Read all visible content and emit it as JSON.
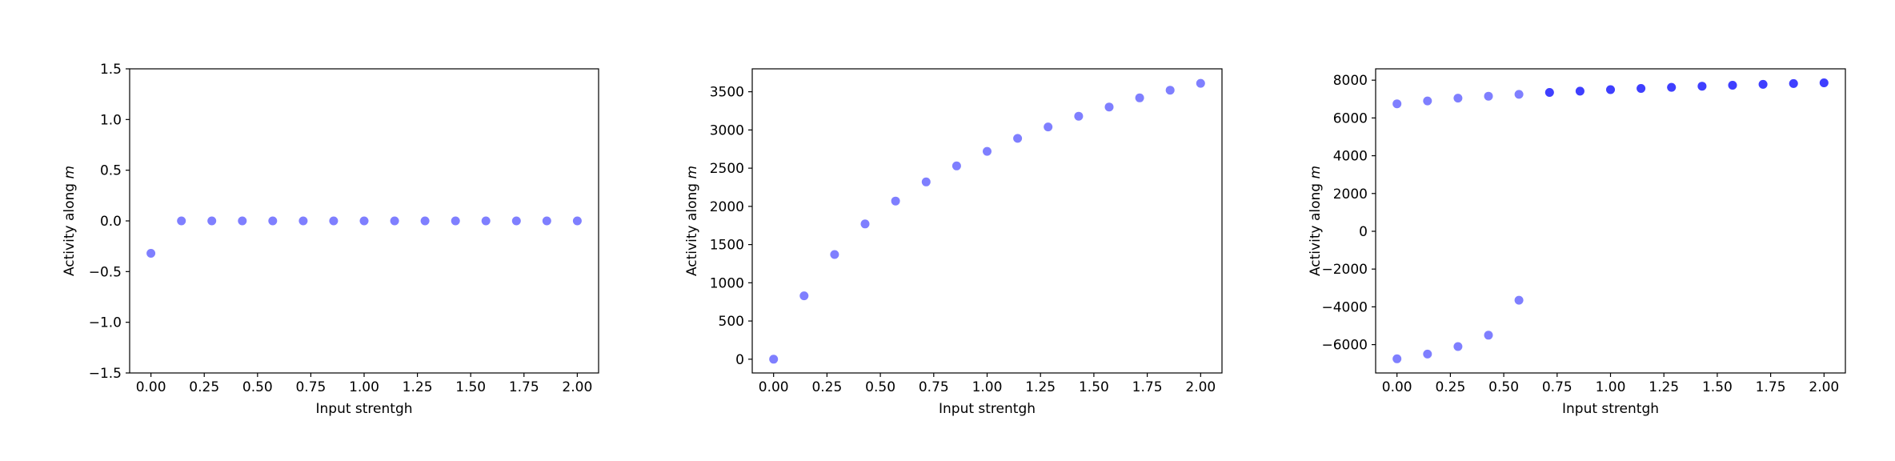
{
  "chart_data": [
    {
      "type": "scatter",
      "xlabel": "Input strentgh",
      "ylabel": "Activity along ",
      "ylabel_italic": "m",
      "xlim": [
        -0.1,
        2.1
      ],
      "ylim": [
        -1.5,
        1.5
      ],
      "xticks": [
        "0.00",
        "0.25",
        "0.50",
        "0.75",
        "1.00",
        "1.25",
        "1.50",
        "1.75",
        "2.00"
      ],
      "yticks": [
        "1.5",
        "1.0",
        "0.5",
        "0.0",
        "−0.5",
        "−1.0",
        "−1.5"
      ],
      "xtick_values": [
        0,
        0.25,
        0.5,
        0.75,
        1.0,
        1.25,
        1.5,
        1.75,
        2.0
      ],
      "ytick_values": [
        1.5,
        1.0,
        0.5,
        0.0,
        -0.5,
        -1.0,
        -1.5
      ],
      "color": "#0000ff",
      "series": [
        {
          "x": [
            0,
            0.1429,
            0.2857,
            0.4286,
            0.5714,
            0.7143,
            0.8571,
            1.0,
            1.1429,
            1.2857,
            1.4286,
            1.5714,
            1.7143,
            1.8571,
            2.0
          ],
          "y": [
            -0.32,
            0,
            0,
            0,
            0,
            0,
            0,
            0,
            0,
            0,
            0,
            0,
            0,
            0,
            0
          ]
        }
      ]
    },
    {
      "type": "scatter",
      "xlabel": "Input strentgh",
      "ylabel": "Activity along ",
      "ylabel_italic": "m",
      "xlim": [
        -0.1,
        2.1
      ],
      "ylim": [
        -180,
        3800
      ],
      "xticks": [
        "0.00",
        "0.25",
        "0.50",
        "0.75",
        "1.00",
        "1.25",
        "1.50",
        "1.75",
        "2.00"
      ],
      "yticks": [
        "3500",
        "3000",
        "2500",
        "2000",
        "1500",
        "1000",
        "500",
        "0"
      ],
      "xtick_values": [
        0,
        0.25,
        0.5,
        0.75,
        1.0,
        1.25,
        1.5,
        1.75,
        2.0
      ],
      "ytick_values": [
        3500,
        3000,
        2500,
        2000,
        1500,
        1000,
        500,
        0
      ],
      "color": "#0000ff",
      "series": [
        {
          "x": [
            0,
            0.1429,
            0.2857,
            0.4286,
            0.5714,
            0.7143,
            0.8571,
            1.0,
            1.1429,
            1.2857,
            1.4286,
            1.5714,
            1.7143,
            1.8571,
            2.0
          ],
          "y": [
            0,
            830,
            1370,
            1770,
            2070,
            2320,
            2530,
            2720,
            2890,
            3040,
            3180,
            3300,
            3420,
            3520,
            3610
          ]
        }
      ]
    },
    {
      "type": "scatter",
      "xlabel": "Input strentgh",
      "ylabel": "Activity along ",
      "ylabel_italic": "m",
      "xlim": [
        -0.1,
        2.1
      ],
      "ylim": [
        -7500,
        8600
      ],
      "xticks": [
        "0.00",
        "0.25",
        "0.50",
        "0.75",
        "1.00",
        "1.25",
        "1.50",
        "1.75",
        "2.00"
      ],
      "yticks": [
        "8000",
        "6000",
        "4000",
        "2000",
        "0",
        "−2000",
        "−4000",
        "−6000"
      ],
      "xtick_values": [
        0,
        0.25,
        0.5,
        0.75,
        1.0,
        1.25,
        1.5,
        1.75,
        2.0
      ],
      "ytick_values": [
        8000,
        6000,
        4000,
        2000,
        0,
        -2000,
        -4000,
        -6000
      ],
      "color": "#0000ff",
      "series": [
        {
          "x": [
            0,
            0.1429,
            0.2857,
            0.4286,
            0.5714,
            0.7143,
            0.8571,
            1.0,
            1.1429,
            1.2857,
            1.4286,
            1.5714,
            1.7143,
            1.8571,
            2.0
          ],
          "y": [
            6750,
            6900,
            7050,
            7150,
            7250,
            7350,
            7420,
            7500,
            7560,
            7620,
            7680,
            7730,
            7780,
            7820,
            7860
          ]
        },
        {
          "x": [
            0.7143,
            0.8571,
            1.0,
            1.1429,
            1.2857,
            1.4286,
            1.5714,
            1.7143,
            1.8571,
            2.0
          ],
          "y": [
            7350,
            7420,
            7500,
            7560,
            7620,
            7680,
            7730,
            7780,
            7820,
            7860
          ]
        },
        {
          "x": [
            0,
            0.1429,
            0.2857,
            0.4286,
            0.5714
          ],
          "y": [
            -6750,
            -6500,
            -6100,
            -5500,
            -3650
          ]
        }
      ]
    }
  ]
}
